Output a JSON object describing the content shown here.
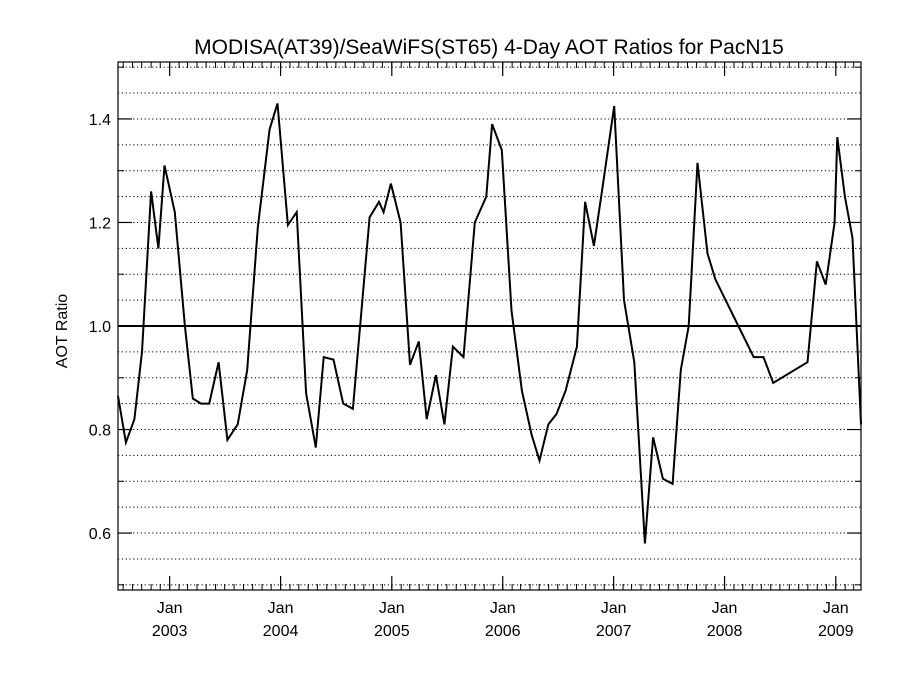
{
  "chart_data": {
    "type": "line",
    "title": "MODISA(AT39)/SeaWiFS(ST65) 4-Day AOT Ratios for PacN15",
    "xlabel": "",
    "ylabel": "AOT Ratio",
    "xlim": [
      "2002-07-15",
      "2009-03-25"
    ],
    "ylim": [
      0.49,
      1.51
    ],
    "y_ticks": [
      0.6,
      0.8,
      1.0,
      1.2,
      1.4
    ],
    "y_tick_labels": [
      "0.6",
      "0.8",
      "1.0",
      "1.2",
      "1.4"
    ],
    "x_ticks": [
      {
        "date": "2003-01-01",
        "month": "Jan",
        "year": "2003"
      },
      {
        "date": "2004-01-01",
        "month": "Jan",
        "year": "2004"
      },
      {
        "date": "2005-01-01",
        "month": "Jan",
        "year": "2005"
      },
      {
        "date": "2006-01-01",
        "month": "Jan",
        "year": "2006"
      },
      {
        "date": "2007-01-01",
        "month": "Jan",
        "year": "2007"
      },
      {
        "date": "2008-01-01",
        "month": "Jan",
        "year": "2008"
      },
      {
        "date": "2009-01-01",
        "month": "Jan",
        "year": "2009"
      }
    ],
    "grid": "horizontal-dotted",
    "reference_line": 1.0,
    "series": [
      {
        "values": [
          [
            "2002-07-15",
            0.865
          ],
          [
            "2002-08-10",
            0.775
          ],
          [
            "2002-09-07",
            0.82
          ],
          [
            "2002-10-02",
            0.95
          ],
          [
            "2002-11-01",
            1.26
          ],
          [
            "2002-11-25",
            1.15
          ],
          [
            "2002-12-15",
            1.31
          ],
          [
            "2003-01-18",
            1.22
          ],
          [
            "2003-02-20",
            1.0
          ],
          [
            "2003-03-18",
            0.86
          ],
          [
            "2003-04-14",
            0.85
          ],
          [
            "2003-05-11",
            0.85
          ],
          [
            "2003-06-11",
            0.93
          ],
          [
            "2003-07-10",
            0.78
          ],
          [
            "2003-08-13",
            0.81
          ],
          [
            "2003-09-13",
            0.915
          ],
          [
            "2003-10-18",
            1.19
          ],
          [
            "2003-11-26",
            1.38
          ],
          [
            "2003-12-22",
            1.43
          ],
          [
            "2004-01-25",
            1.195
          ],
          [
            "2004-02-23",
            1.22
          ],
          [
            "2004-03-25",
            0.87
          ],
          [
            "2004-04-26",
            0.765
          ],
          [
            "2004-05-22",
            0.94
          ],
          [
            "2004-06-23",
            0.935
          ],
          [
            "2004-07-25",
            0.85
          ],
          [
            "2004-08-26",
            0.84
          ],
          [
            "2004-10-20",
            1.21
          ],
          [
            "2004-11-20",
            1.24
          ],
          [
            "2004-12-05",
            1.22
          ],
          [
            "2004-12-29",
            1.275
          ],
          [
            "2005-01-30",
            1.2
          ],
          [
            "2005-03-02",
            0.925
          ],
          [
            "2005-03-31",
            0.97
          ],
          [
            "2005-04-26",
            0.82
          ],
          [
            "2005-05-26",
            0.905
          ],
          [
            "2005-06-23",
            0.81
          ],
          [
            "2005-07-21",
            0.96
          ],
          [
            "2005-08-25",
            0.94
          ],
          [
            "2005-10-01",
            1.2
          ],
          [
            "2005-11-08",
            1.25
          ],
          [
            "2005-11-27",
            1.39
          ],
          [
            "2005-12-29",
            1.34
          ],
          [
            "2006-01-30",
            1.03
          ],
          [
            "2006-03-05",
            0.875
          ],
          [
            "2006-04-06",
            0.79
          ],
          [
            "2006-05-02",
            0.74
          ],
          [
            "2006-05-31",
            0.81
          ],
          [
            "2006-06-27",
            0.83
          ],
          [
            "2006-07-27",
            0.875
          ],
          [
            "2006-09-02",
            0.96
          ],
          [
            "2006-09-29",
            1.24
          ],
          [
            "2006-10-28",
            1.155
          ],
          [
            "2006-11-26",
            1.27
          ],
          [
            "2007-01-03",
            1.425
          ],
          [
            "2007-02-04",
            1.05
          ],
          [
            "2007-03-10",
            0.93
          ],
          [
            "2007-04-14",
            0.58
          ],
          [
            "2007-05-11",
            0.785
          ],
          [
            "2007-06-12",
            0.705
          ],
          [
            "2007-07-14",
            0.695
          ],
          [
            "2007-08-10",
            0.915
          ],
          [
            "2007-09-05",
            1.0
          ],
          [
            "2007-10-04",
            1.315
          ],
          [
            "2007-11-06",
            1.14
          ],
          [
            "2007-12-02",
            1.09
          ],
          [
            "2008-04-06",
            0.94
          ],
          [
            "2008-05-08",
            0.94
          ],
          [
            "2008-06-09",
            0.89
          ],
          [
            "2008-09-30",
            0.93
          ],
          [
            "2008-10-31",
            1.125
          ],
          [
            "2008-11-29",
            1.08
          ],
          [
            "2008-12-28",
            1.2
          ],
          [
            "2009-01-06",
            1.365
          ],
          [
            "2009-01-31",
            1.25
          ],
          [
            "2009-02-25",
            1.17
          ],
          [
            "2009-03-25",
            0.81
          ]
        ]
      }
    ]
  }
}
